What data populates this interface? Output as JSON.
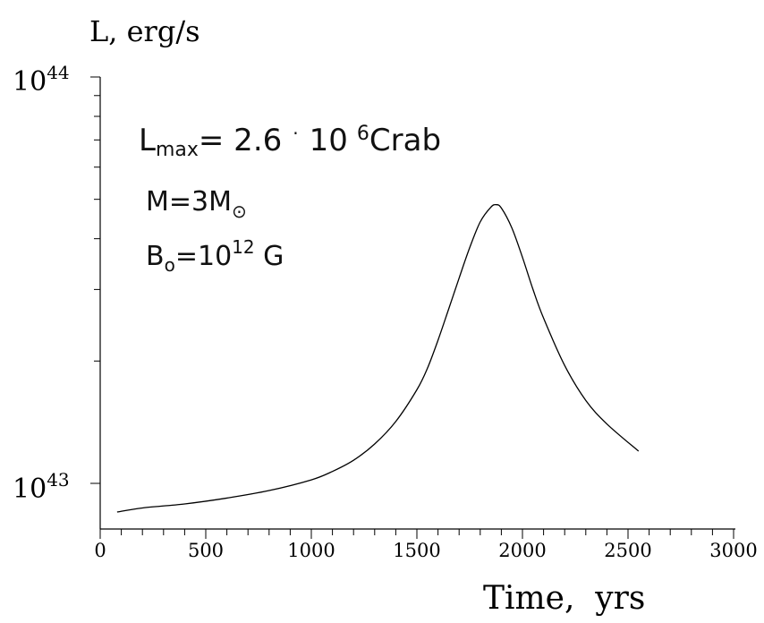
{
  "chart_data": {
    "type": "line",
    "ylabel": "L, erg/s",
    "xlabel": "Time,  yrs",
    "x_scale": "linear",
    "y_scale": "log",
    "xlim": [
      0,
      3000
    ],
    "ylim": [
      8e+42,
      1e+44
    ],
    "x_ticks": [
      0,
      500,
      1000,
      1500,
      2000,
      2500,
      3000
    ],
    "x_tick_labels": [
      "0",
      "500",
      "1000",
      "1500",
      "2000",
      "2500",
      "3000"
    ],
    "y_ticks": [
      1e+43,
      1e+44
    ],
    "y_tick_labels": [
      {
        "base": "10",
        "exp": "43"
      },
      {
        "base": "10",
        "exp": "44"
      }
    ],
    "grid": false,
    "annotations": {
      "lmax": {
        "prefix": "L",
        "sub": "max",
        "eq": "= 2.6",
        "dot": "·",
        "ten": "10",
        "exp": "6",
        "unit": "Crab"
      },
      "mass": {
        "text": "M=3M",
        "sub": "⊙"
      },
      "bfield": {
        "prefix": "B",
        "sub": "o",
        "eq": "=10",
        "exp": "12",
        "unit": " G"
      }
    },
    "series": [
      {
        "x": [
          80,
          200,
          400,
          600,
          800,
          1000,
          1100,
          1200,
          1300,
          1400,
          1500,
          1550,
          1600,
          1650,
          1700,
          1750,
          1800,
          1850,
          1875,
          1900,
          1950,
          2000,
          2050,
          2100,
          2200,
          2300,
          2400,
          2550
        ],
        "y": [
          8.5e+42,
          8.7e+42,
          8.9e+42,
          9.2e+42,
          9.6e+42,
          1.02e+43,
          1.07e+43,
          1.14e+43,
          1.25e+43,
          1.42e+43,
          1.7e+43,
          1.92e+43,
          2.25e+43,
          2.68e+43,
          3.2e+43,
          3.8e+43,
          4.4e+43,
          4.78e+43,
          4.85e+43,
          4.76e+43,
          4.25e+43,
          3.6e+43,
          3e+43,
          2.55e+43,
          1.95e+43,
          1.6e+43,
          1.4e+43,
          1.2e+43
        ]
      }
    ]
  }
}
